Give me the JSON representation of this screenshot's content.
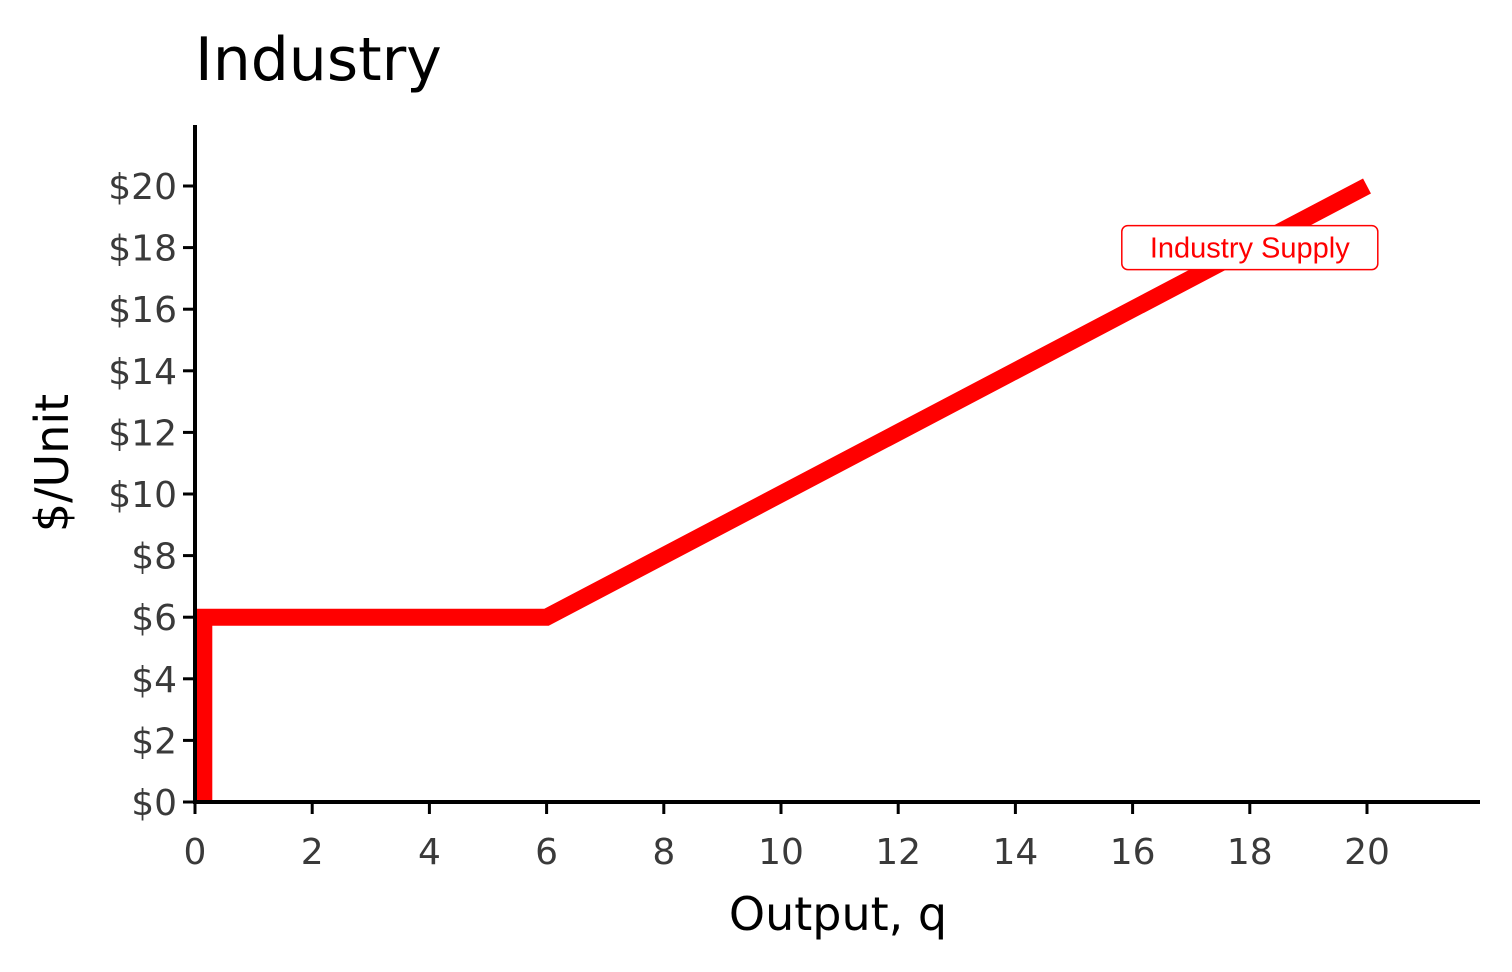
{
  "chart_data": {
    "type": "line",
    "title": "Industry",
    "xlabel": "Output, q",
    "ylabel": "$/Unit",
    "xlim": [
      0,
      22
    ],
    "ylim": [
      0,
      22
    ],
    "x_ticks": [
      0,
      2,
      4,
      6,
      8,
      10,
      12,
      14,
      16,
      18,
      20
    ],
    "x_tick_labels": [
      "0",
      "2",
      "4",
      "6",
      "8",
      "10",
      "12",
      "14",
      "16",
      "18",
      "20"
    ],
    "y_ticks": [
      0,
      2,
      4,
      6,
      8,
      10,
      12,
      14,
      16,
      18,
      20
    ],
    "y_tick_labels": [
      "$0",
      "$2",
      "$4",
      "$6",
      "$8",
      "$10",
      "$12",
      "$14",
      "$16",
      "$18",
      "$20"
    ],
    "grid": false,
    "series": [
      {
        "name": "Industry Supply",
        "color": "#ff0000",
        "points": [
          {
            "x": 0.15,
            "y": 0
          },
          {
            "x": 0.15,
            "y": 6
          },
          {
            "x": 6,
            "y": 6
          },
          {
            "x": 20,
            "y": 20
          }
        ]
      }
    ],
    "annotations": [
      {
        "text": "Industry Supply",
        "x": 18,
        "y": 18,
        "color": "#ff0000"
      }
    ]
  }
}
